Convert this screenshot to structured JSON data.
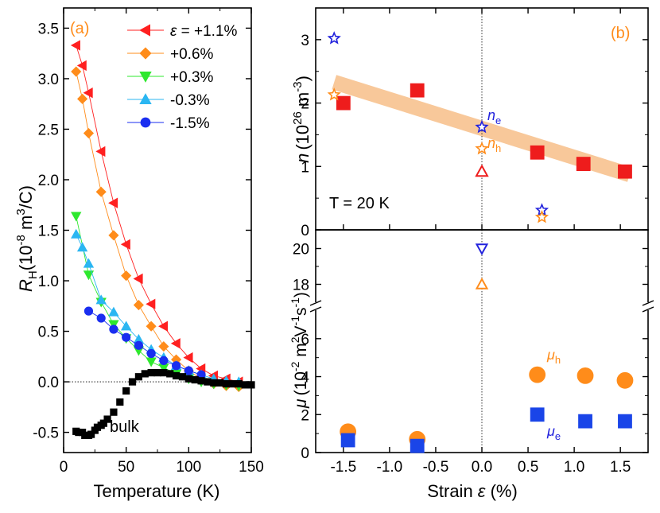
{
  "chart_data": [
    {
      "panel": "(a)",
      "type": "line",
      "xlabel": "Temperature (K)",
      "ylabel_main": "R",
      "ylabel_sub": "H",
      "ylabel_units_pre": "(10",
      "ylabel_units_exp": "-8",
      "ylabel_units_mid": " m",
      "ylabel_units_exp2": "3",
      "ylabel_units_post": "/C)",
      "xlim": [
        0,
        150
      ],
      "ylim": [
        -0.7,
        3.7
      ],
      "xticks": [
        0,
        50,
        100,
        150
      ],
      "yticks": [
        -0.5,
        0.0,
        0.5,
        1.0,
        1.5,
        2.0,
        2.5,
        3.0,
        3.5
      ],
      "xtick_labels": [
        "0",
        "50",
        "100",
        "150"
      ],
      "ytick_labels": [
        "-0.5",
        "0.0",
        "0.5",
        "1.0",
        "1.5",
        "2.0",
        "2.5",
        "3.0",
        "3.5"
      ],
      "zero_line": true,
      "legend_prefix": "ε = ",
      "series": [
        {
          "name": "+1.1%",
          "color": "#ff2020",
          "marker": "triangle-left",
          "x": [
            10,
            15,
            20,
            30,
            40,
            50,
            60,
            70,
            80,
            90,
            100,
            110,
            120,
            130,
            140
          ],
          "y": [
            3.33,
            3.13,
            2.86,
            2.28,
            1.77,
            1.36,
            1.02,
            0.77,
            0.55,
            0.38,
            0.24,
            0.13,
            0.06,
            0.03,
            0.0
          ]
        },
        {
          "name": "+0.6%",
          "color": "#ff8c1a",
          "marker": "diamond",
          "x": [
            10,
            15,
            20,
            30,
            40,
            50,
            60,
            70,
            80,
            90,
            100,
            110,
            120,
            130,
            140
          ],
          "y": [
            3.07,
            2.8,
            2.46,
            1.88,
            1.45,
            1.05,
            0.76,
            0.55,
            0.35,
            0.22,
            0.11,
            0.03,
            -0.02,
            -0.04,
            -0.05
          ]
        },
        {
          "name": "+0.3%",
          "color": "#2ee82e",
          "marker": "triangle-down",
          "x": [
            10,
            20,
            30,
            40,
            50,
            60,
            70,
            80,
            90,
            100,
            110,
            120,
            130,
            140
          ],
          "y": [
            1.64,
            1.06,
            0.79,
            0.57,
            0.43,
            0.31,
            0.2,
            0.14,
            0.08,
            0.03,
            0.0,
            -0.02,
            -0.03,
            -0.04
          ]
        },
        {
          "name": "-0.3%",
          "color": "#2bb6f2",
          "marker": "triangle-up",
          "x": [
            10,
            15,
            20,
            30,
            40,
            50,
            60,
            70,
            80,
            90,
            100,
            110,
            120,
            130,
            140
          ],
          "y": [
            1.46,
            1.33,
            1.17,
            0.81,
            0.69,
            0.55,
            0.42,
            0.32,
            0.24,
            0.16,
            0.11,
            0.07,
            0.03,
            0.01,
            0.0
          ]
        },
        {
          "name": "-1.5%",
          "color": "#1a2ef0",
          "marker": "circle",
          "x": [
            20,
            30,
            40,
            50,
            60,
            70,
            80,
            90,
            100,
            110
          ],
          "y": [
            0.7,
            0.63,
            0.52,
            0.44,
            0.36,
            0.28,
            0.21,
            0.16,
            0.11,
            0.07
          ]
        },
        {
          "name": "bulk",
          "color": "#000000",
          "marker": "square",
          "legend": false,
          "x": [
            10,
            12,
            15,
            17,
            20,
            22,
            25,
            27,
            30,
            32,
            35,
            40,
            45,
            50,
            55,
            60,
            65,
            70,
            75,
            80,
            85,
            90,
            95,
            100,
            105,
            110,
            115,
            120,
            125,
            130,
            135,
            140,
            145,
            150
          ],
          "y": [
            -0.49,
            -0.5,
            -0.5,
            -0.53,
            -0.53,
            -0.52,
            -0.48,
            -0.45,
            -0.43,
            -0.41,
            -0.37,
            -0.3,
            -0.2,
            -0.09,
            0.0,
            0.05,
            0.08,
            0.09,
            0.09,
            0.09,
            0.08,
            0.06,
            0.05,
            0.03,
            0.02,
            0.01,
            0.0,
            -0.01,
            -0.01,
            -0.02,
            -0.02,
            -0.02,
            -0.03,
            -0.03
          ]
        }
      ],
      "annotations": {
        "panel_label": "(a)",
        "bulk_label": "bulk"
      }
    },
    {
      "panel": "(b) upper",
      "type": "scatter",
      "ylabel_main": "n",
      "ylabel_units_pre": "(10",
      "ylabel_units_exp": "26",
      "ylabel_units_mid": " m",
      "ylabel_units_exp2": "-3",
      "ylabel_units_post": ")",
      "xlim": [
        -1.8,
        1.8
      ],
      "ylim": [
        0,
        3.5
      ],
      "yticks": [
        0,
        1,
        2,
        3
      ],
      "ytick_labels": [
        "0",
        "1",
        "2",
        "3"
      ],
      "trend_band": {
        "x": [
          -1.6,
          1.6
        ],
        "y": [
          2.33,
          0.87
        ],
        "color": "#f8c89a"
      },
      "series": [
        {
          "name": "n (film)",
          "marker": "square-filled",
          "color": "#ee1c1c",
          "x": [
            -1.5,
            -0.7,
            0.6,
            1.1,
            1.55
          ],
          "y": [
            2.0,
            2.2,
            1.22,
            1.04,
            0.92
          ]
        },
        {
          "name": "n_e",
          "marker": "star-open",
          "color": "#2222dd",
          "x": [
            -1.6,
            0.0,
            0.65
          ],
          "y": [
            3.02,
            1.62,
            0.31
          ]
        },
        {
          "name": "n_h",
          "marker": "star-open",
          "color": "#ff8c1a",
          "x": [
            -1.6,
            0.0,
            0.65
          ],
          "y": [
            2.13,
            1.28,
            0.2
          ]
        },
        {
          "name": "n bulk",
          "marker": "triangle-up-open",
          "color": "#ee1c1c",
          "x": [
            0.0
          ],
          "y": [
            0.92
          ]
        }
      ],
      "annotations": {
        "panel_label": "(b)",
        "temperature": "T = 20 K",
        "ne_label": "n",
        "ne_sub": "e",
        "nh_label": "n",
        "nh_sub": "h"
      }
    },
    {
      "panel": "(b) lower",
      "type": "scatter",
      "xlabel": "Strain ε (%)",
      "ylabel_main": "μ",
      "ylabel_units_pre": "(10",
      "ylabel_units_exp": "-2",
      "ylabel_units_mid": " m",
      "ylabel_units_exp2": "2",
      "ylabel_units_mid2": "V",
      "ylabel_units_exp3": "-1",
      "ylabel_units_mid3": "s",
      "ylabel_units_exp4": "-1",
      "ylabel_units_post": ")",
      "xlim": [
        -1.8,
        1.8
      ],
      "xticks": [
        -1.5,
        -1.0,
        -0.5,
        0.0,
        0.5,
        1.0,
        1.5
      ],
      "xtick_labels": [
        "-1.5",
        "-1.0",
        "-0.5",
        "0.0",
        "0.5",
        "1.0",
        "1.5"
      ],
      "ylim_low": [
        0,
        7.5
      ],
      "ylim_high": [
        17,
        21
      ],
      "yticks_low": [
        0,
        2,
        4,
        6
      ],
      "ytick_labels_low": [
        "0",
        "2",
        "4",
        "6"
      ],
      "yticks_high": [
        18,
        20
      ],
      "ytick_labels_high": [
        "18",
        "20"
      ],
      "series": [
        {
          "name": "mu_h",
          "marker": "circle-filled",
          "color": "#ff8c1a",
          "x": [
            -1.45,
            -0.7,
            0.6,
            1.12,
            1.55
          ],
          "y": [
            1.1,
            0.7,
            4.1,
            4.05,
            3.8
          ]
        },
        {
          "name": "mu_e",
          "marker": "square-filled",
          "color": "#1a45e8",
          "x": [
            -1.45,
            -0.7,
            0.6,
            1.12,
            1.55
          ],
          "y": [
            0.65,
            0.35,
            2.0,
            1.65,
            1.65
          ]
        },
        {
          "name": "mu_e bulk",
          "marker": "triangle-down-open",
          "color": "#2222dd",
          "x": [
            0.0
          ],
          "y": [
            20.0
          ]
        },
        {
          "name": "mu_h bulk",
          "marker": "triangle-up-open",
          "color": "#ff8c1a",
          "x": [
            0.0
          ],
          "y": [
            18.0
          ]
        }
      ],
      "annotations": {
        "muh_label": "μ",
        "muh_sub": "h",
        "mue_label": "μ",
        "mue_sub": "e"
      }
    }
  ]
}
